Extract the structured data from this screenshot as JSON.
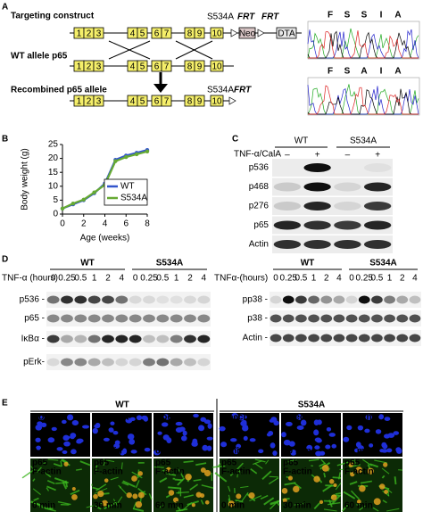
{
  "panel_a": {
    "label": "A",
    "targeting_title": "Targeting construct",
    "wt_title": "WT allele p65",
    "recombined_title": "Recombined p65 allele",
    "exons": [
      "1",
      "2",
      "3",
      "4",
      "5",
      "6",
      "7",
      "8",
      "9",
      "10"
    ],
    "mutation": "S534A",
    "frt": "FRT",
    "neo": "Neo",
    "dta": "DTA",
    "wt_sequence": [
      "F",
      "S",
      "S",
      "I",
      "A"
    ],
    "mutant_sequence": [
      "F",
      "S",
      "A",
      "I",
      "A"
    ]
  },
  "chart_data": {
    "type": "line",
    "label": "B",
    "x": [
      0,
      1,
      2,
      3,
      4,
      5,
      6,
      7,
      8
    ],
    "series": [
      {
        "name": "WT",
        "color": "#3355cc",
        "values": [
          2,
          3.5,
          5,
          7.5,
          11,
          19.5,
          21,
          22,
          23
        ]
      },
      {
        "name": "S534A",
        "color": "#66aa33",
        "values": [
          2,
          3.8,
          5.2,
          7.8,
          10.5,
          19,
          20.5,
          21.5,
          22.5
        ]
      }
    ],
    "xlabel": "Age (weeks)",
    "ylabel": "Body weight (g)",
    "xlim": [
      0,
      8
    ],
    "ylim": [
      0,
      25
    ],
    "xticks": [
      0,
      2,
      4,
      6,
      8
    ],
    "yticks": [
      0,
      5,
      10,
      15,
      20,
      25
    ],
    "legend": "lower right"
  },
  "panel_c": {
    "label": "C",
    "groups": [
      "WT",
      "S534A"
    ],
    "treatment": "TNF-α/CalA",
    "conditions": [
      "–",
      "+",
      "–",
      "+"
    ],
    "rows": [
      "p536",
      "p468",
      "p276",
      "p65",
      "Actin"
    ]
  },
  "panel_d": {
    "label": "D",
    "left": {
      "groups": [
        "WT",
        "S534A"
      ],
      "treatment": "TNF-α (hours)",
      "times": [
        "0",
        "0.25",
        "0.5",
        "1",
        "2",
        "4",
        "0",
        "0.25",
        "0.5",
        "1",
        "2",
        "4"
      ],
      "rows": [
        "p536 -",
        "p65 -",
        "IκBα -",
        "pErk-"
      ]
    },
    "right": {
      "groups": [
        "WT",
        "S534A"
      ],
      "treatment": "TNFα-(hours)",
      "times": [
        "0",
        "0.25",
        "0.5",
        "1",
        "2",
        "4",
        "0",
        "0.25",
        "0.5",
        "1",
        "2",
        "4"
      ],
      "rows": [
        "pp38 -",
        "p38 -",
        "Actin -"
      ]
    }
  },
  "panel_e": {
    "label": "E",
    "groups": [
      "WT",
      "S534A"
    ],
    "top_stain": "Hoechst",
    "bottom_stains": [
      "p65",
      "F-actin"
    ],
    "times": [
      "0 min",
      "30 min",
      "60 min",
      "0 min",
      "30 min",
      "60 min"
    ]
  }
}
